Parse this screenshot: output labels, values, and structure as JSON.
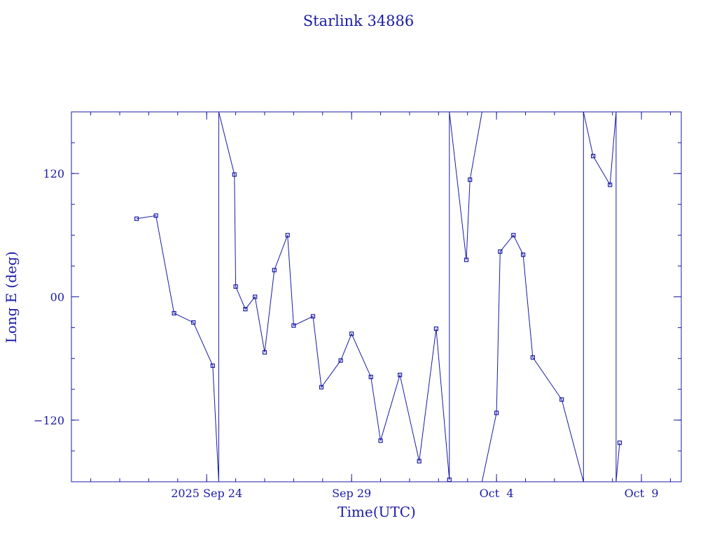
{
  "chart_data": {
    "type": "line",
    "title": "Starlink 34886",
    "xlabel": "Time(UTC)",
    "ylabel": "Long E (deg)",
    "x_ticks": [
      {
        "date": "2025-09-24",
        "label": "2025 Sep 24"
      },
      {
        "date": "2025-09-29",
        "label": "Sep 29"
      },
      {
        "date": "2025-10-04",
        "label": "Oct  4"
      },
      {
        "date": "2025-10-09",
        "label": "Oct  9"
      }
    ],
    "y_ticks": [
      {
        "value": 120,
        "label": "120"
      },
      {
        "value": 0,
        "label": "00"
      },
      {
        "value": -120,
        "label": "−120"
      }
    ],
    "xlim": [
      "2025-09-19T08:00",
      "2025-10-10T09:00"
    ],
    "ylim": [
      -180,
      180
    ],
    "color": "#1a1aa6",
    "series": [
      {
        "points": [
          {
            "t": "2025-09-21T14:00",
            "lon": 76
          },
          {
            "t": "2025-09-22T06:00",
            "lon": 79
          },
          {
            "t": "2025-09-22T21:00",
            "lon": -16
          },
          {
            "t": "2025-09-23T13:00",
            "lon": -25
          },
          {
            "t": "2025-09-24T05:00",
            "lon": -67
          },
          {
            "t": "2025-09-24T10:00",
            "lon": -180
          },
          {
            "t": "2025-09-24T10:00",
            "lon": 180
          },
          {
            "t": "2025-09-24T23:00",
            "lon": 119
          },
          {
            "t": "2025-09-25T00:00",
            "lon": 10
          },
          {
            "t": "2025-09-25T08:00",
            "lon": -12
          },
          {
            "t": "2025-09-25T16:00",
            "lon": 0
          },
          {
            "t": "2025-09-26T00:00",
            "lon": -54
          },
          {
            "t": "2025-09-26T08:00",
            "lon": 26
          },
          {
            "t": "2025-09-26T19:00",
            "lon": 60
          },
          {
            "t": "2025-09-27T00:00",
            "lon": -28
          },
          {
            "t": "2025-09-27T16:00",
            "lon": -19
          },
          {
            "t": "2025-09-27T23:00",
            "lon": -88
          },
          {
            "t": "2025-09-28T15:00",
            "lon": -62
          },
          {
            "t": "2025-09-29T00:00",
            "lon": -36
          },
          {
            "t": "2025-09-29T16:00",
            "lon": -78
          },
          {
            "t": "2025-09-30T00:00",
            "lon": -140
          },
          {
            "t": "2025-09-30T16:00",
            "lon": -76
          },
          {
            "t": "2025-10-01T08:00",
            "lon": -160
          },
          {
            "t": "2025-10-01T22:00",
            "lon": -31
          },
          {
            "t": "2025-10-02T09:00",
            "lon": -178
          },
          {
            "t": "2025-10-02T09:00",
            "lon": 180
          },
          {
            "t": "2025-10-02T23:00",
            "lon": 36
          },
          {
            "t": "2025-10-03T02:00",
            "lon": 114
          },
          {
            "t": "2025-10-03T12:00",
            "lon": 180
          }
        ]
      },
      {
        "points": [
          {
            "t": "2025-10-03T12:00",
            "lon": -180
          },
          {
            "t": "2025-10-04T00:00",
            "lon": -113
          },
          {
            "t": "2025-10-04T03:00",
            "lon": 44
          },
          {
            "t": "2025-10-04T14:00",
            "lon": 60
          },
          {
            "t": "2025-10-04T22:00",
            "lon": 41
          },
          {
            "t": "2025-10-05T06:00",
            "lon": -59
          },
          {
            "t": "2025-10-06T06:00",
            "lon": -100
          },
          {
            "t": "2025-10-07T00:00",
            "lon": -180
          },
          {
            "t": "2025-10-07T00:00",
            "lon": 180
          },
          {
            "t": "2025-10-07T08:00",
            "lon": 137
          },
          {
            "t": "2025-10-07T22:00",
            "lon": 109
          },
          {
            "t": "2025-10-08T03:00",
            "lon": 180
          },
          {
            "t": "2025-10-08T03:00",
            "lon": -180
          },
          {
            "t": "2025-10-08T06:00",
            "lon": -142
          }
        ]
      }
    ]
  }
}
